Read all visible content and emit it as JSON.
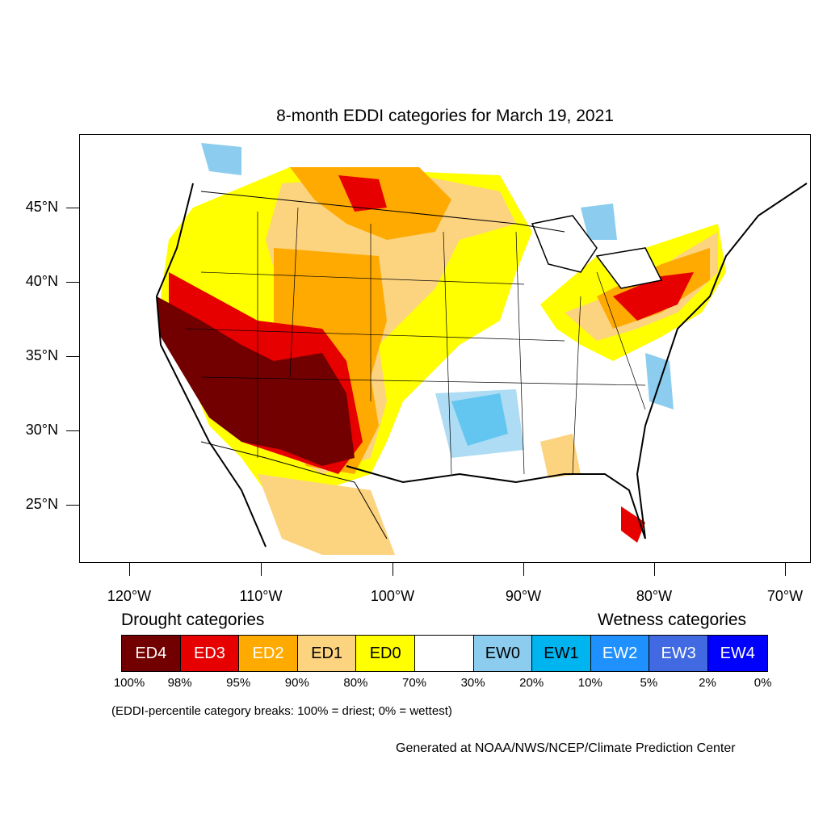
{
  "title": "8-month EDDI categories for March 19, 2021",
  "lat_labels": [
    "45°N",
    "40°N",
    "35°N",
    "30°N",
    "25°N"
  ],
  "lon_labels": [
    "120°W",
    "110°W",
    "100°W",
    "90°W",
    "80°W",
    "70°W"
  ],
  "legend": {
    "drought_title": "Drought categories",
    "wetness_title": "Wetness categories",
    "categories": [
      {
        "label": "ED4",
        "color": "#730000",
        "text_color": "#ffffff"
      },
      {
        "label": "ED3",
        "color": "#e60000",
        "text_color": "#ffffff"
      },
      {
        "label": "ED2",
        "color": "#ffaa00",
        "text_color": "#ffffff"
      },
      {
        "label": "ED1",
        "color": "#fcd37f",
        "text_color": "#000000"
      },
      {
        "label": "ED0",
        "color": "#ffff00",
        "text_color": "#000000"
      },
      {
        "label": "",
        "color": "#ffffff",
        "text_color": "#000000"
      },
      {
        "label": "EW0",
        "color": "#8ccdef",
        "text_color": "#000000"
      },
      {
        "label": "EW1",
        "color": "#00b4f0",
        "text_color": "#000000"
      },
      {
        "label": "EW2",
        "color": "#1e90ff",
        "text_color": "#ffffff"
      },
      {
        "label": "EW3",
        "color": "#4169e1",
        "text_color": "#ffffff"
      },
      {
        "label": "EW4",
        "color": "#0000ff",
        "text_color": "#ffffff"
      }
    ],
    "percentiles": [
      "100%",
      "98%",
      "95%",
      "90%",
      "80%",
      "70%",
      "30%",
      "20%",
      "10%",
      "5%",
      "2%",
      "0%"
    ]
  },
  "note": "(EDDI-percentile category breaks: 100% = driest; 0% = wettest)",
  "credit": "Generated at NOAA/NWS/NCEP/Climate Prediction Center"
}
